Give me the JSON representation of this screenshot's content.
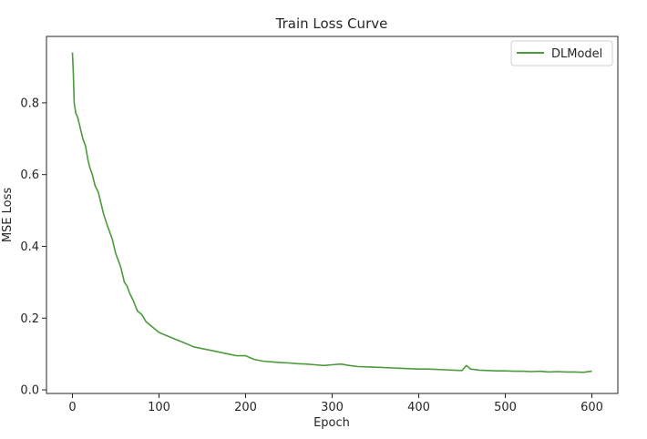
{
  "chart_data": {
    "type": "line",
    "title": "Train Loss Curve",
    "xlabel": "Epoch",
    "ylabel": "MSE Loss",
    "xlim": [
      -30,
      630
    ],
    "ylim": [
      -0.01,
      0.985
    ],
    "xticks": [
      0,
      100,
      200,
      300,
      400,
      500,
      600
    ],
    "yticks": [
      0.0,
      0.2,
      0.4,
      0.6,
      0.8
    ],
    "ytick_labels": [
      "0.0",
      "0.2",
      "0.4",
      "0.6",
      "0.8"
    ],
    "grid": false,
    "legend": {
      "position": "top-right",
      "entries": [
        "DLModel"
      ]
    },
    "series": [
      {
        "name": "DLModel",
        "color": "#4c9a3c",
        "x": [
          0,
          1,
          2,
          4,
          6,
          8,
          10,
          12,
          15,
          18,
          20,
          23,
          26,
          30,
          33,
          36,
          40,
          43,
          46,
          50,
          53,
          56,
          60,
          63,
          66,
          70,
          75,
          80,
          85,
          90,
          95,
          100,
          110,
          120,
          130,
          140,
          150,
          160,
          170,
          180,
          190,
          200,
          210,
          220,
          230,
          240,
          250,
          260,
          270,
          280,
          290,
          300,
          310,
          320,
          330,
          340,
          350,
          360,
          370,
          380,
          390,
          400,
          410,
          420,
          430,
          440,
          450,
          455,
          460,
          470,
          480,
          490,
          500,
          510,
          520,
          530,
          540,
          550,
          560,
          570,
          580,
          590,
          600
        ],
        "values": [
          0.94,
          0.88,
          0.8,
          0.77,
          0.76,
          0.74,
          0.72,
          0.7,
          0.68,
          0.64,
          0.62,
          0.6,
          0.57,
          0.55,
          0.52,
          0.49,
          0.46,
          0.44,
          0.42,
          0.38,
          0.36,
          0.34,
          0.3,
          0.29,
          0.27,
          0.25,
          0.22,
          0.21,
          0.19,
          0.18,
          0.17,
          0.16,
          0.15,
          0.14,
          0.13,
          0.12,
          0.115,
          0.11,
          0.105,
          0.1,
          0.095,
          0.095,
          0.085,
          0.08,
          0.078,
          0.076,
          0.075,
          0.073,
          0.072,
          0.07,
          0.068,
          0.07,
          0.072,
          0.068,
          0.065,
          0.064,
          0.063,
          0.062,
          0.061,
          0.06,
          0.059,
          0.058,
          0.058,
          0.057,
          0.056,
          0.055,
          0.054,
          0.068,
          0.058,
          0.055,
          0.054,
          0.053,
          0.053,
          0.052,
          0.052,
          0.051,
          0.052,
          0.05,
          0.051,
          0.05,
          0.05,
          0.049,
          0.052
        ]
      }
    ]
  }
}
